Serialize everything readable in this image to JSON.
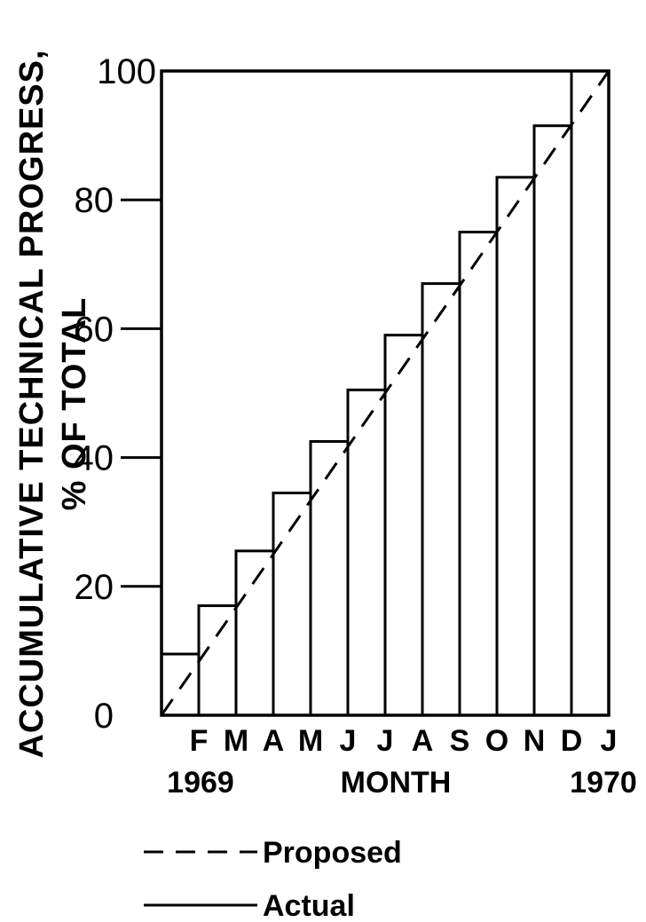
{
  "chart_data": {
    "type": "bar",
    "ylabel_line1": "ACCUMULATIVE TECHNICAL PROGRESS,",
    "ylabel_line2": "% OF TOTAL",
    "xlabel": "MONTH",
    "ylim": [
      0,
      100
    ],
    "yticks": [
      "0",
      "20",
      "40",
      "60",
      "80",
      "100"
    ],
    "month_ticks": [
      "F",
      "M",
      "A",
      "M",
      "J",
      "J",
      "A",
      "S",
      "O",
      "N",
      "D",
      "J"
    ],
    "year_start": "1969",
    "year_end": "1970",
    "series": [
      {
        "name": "Actual",
        "style": "solid",
        "values": [
          9.5,
          17,
          25.5,
          34.5,
          42.5,
          50.5,
          59,
          67,
          75,
          83.5,
          91.5,
          100
        ]
      },
      {
        "name": "Proposed",
        "style": "dashed",
        "line": [
          [
            0,
            0
          ],
          [
            12,
            100
          ]
        ]
      }
    ],
    "legend": [
      {
        "label": "Proposed",
        "style": "dashed"
      },
      {
        "label": "Actual",
        "style": "solid"
      }
    ],
    "grid": false,
    "legend_position": "bottom-center"
  }
}
